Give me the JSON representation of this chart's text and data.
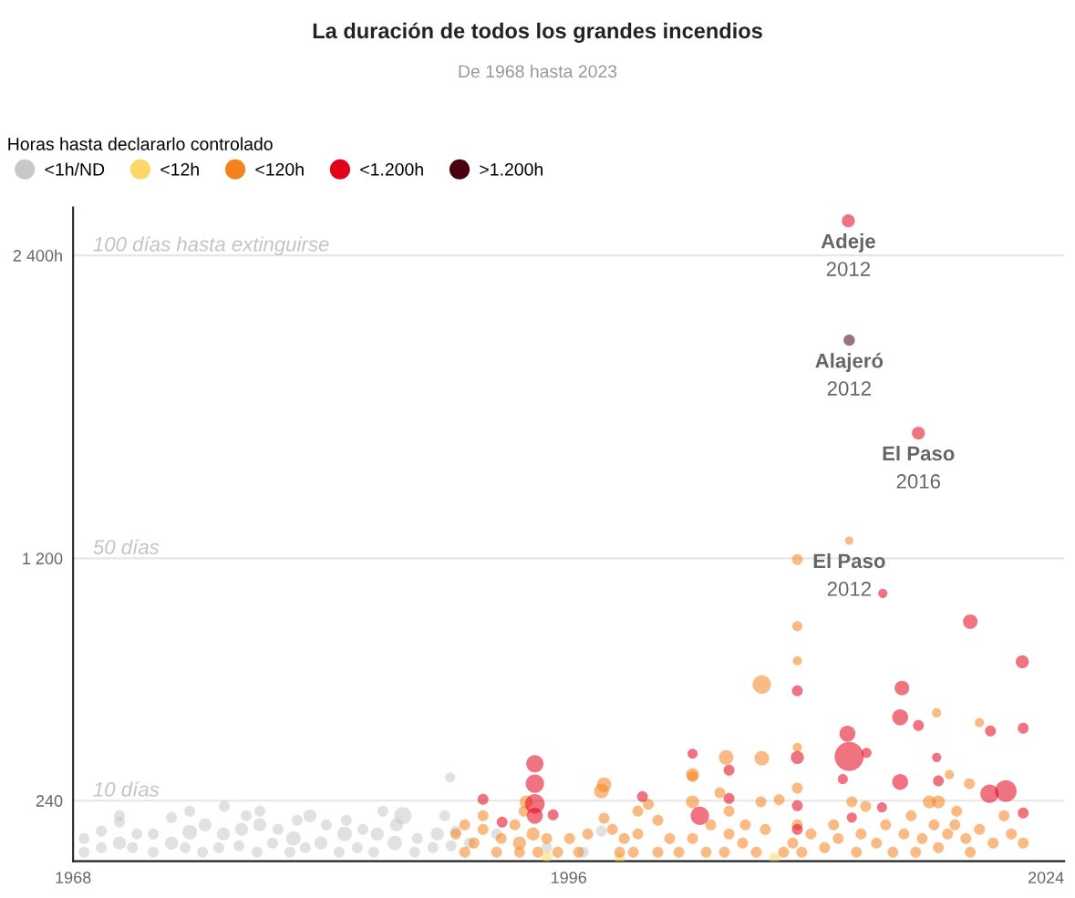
{
  "chart_data": {
    "type": "bubble",
    "title": "La duración de todos los grandes incendios",
    "subtitle": "De 1968 hasta 2023",
    "legend_title": "Horas hasta declararlo controlado",
    "legend": "top left",
    "xlim": [
      1968,
      2024
    ],
    "xticks": [
      1968,
      1996,
      2024
    ],
    "ylim": [
      0,
      2590
    ],
    "yticks": [
      {
        "value": 240,
        "label": "240"
      },
      {
        "value": 1200,
        "label": "1 200"
      },
      {
        "value": 2400,
        "label": "2 400h"
      }
    ],
    "grid": false,
    "ref_lines": [
      {
        "axis": "y",
        "value": 240,
        "label": "10 días",
        "color": "#e6e6e6"
      },
      {
        "axis": "y",
        "value": 1200,
        "label": "50 días",
        "color": "#e6e6e6"
      },
      {
        "axis": "y",
        "value": 2400,
        "label": "100 días hasta extinguirse",
        "color": "#e6e6e6"
      }
    ],
    "annotations": [
      {
        "text": "Adeje\n2012",
        "x": 2011.8,
        "y": 2537
      },
      {
        "text": "Alajeró\n2012",
        "x": 2011.85,
        "y": 2064
      },
      {
        "text": "El Paso\n2016",
        "x": 2015.76,
        "y": 1696
      },
      {
        "text": "El Paso\n2012",
        "x": 2011.85,
        "y": 1270
      }
    ],
    "series": [
      {
        "name": "<1h/ND",
        "color": "#c8c8c8",
        "x": [
          1968.62,
          1968.62,
          1969.6,
          1969.6,
          1970.62,
          1970.62,
          1970.62,
          1971.35,
          1971.6,
          1972.53,
          1972.53,
          1973.56,
          1973.56,
          1974.33,
          1974.59,
          1974.59,
          1975.31,
          1975.46,
          1976.23,
          1976.49,
          1976.54,
          1977.37,
          1977.52,
          1977.78,
          1978.4,
          1978.55,
          1978.55,
          1979.27,
          1979.58,
          1980.25,
          1980.45,
          1980.66,
          1981.12,
          1981.38,
          1982.0,
          1982.31,
          1983.03,
          1983.34,
          1983.44,
          1984.06,
          1984.37,
          1984.98,
          1985.19,
          1985.5,
          1986.17,
          1986.27,
          1986.63,
          1987.3,
          1987.45,
          1988.33,
          1988.58,
          1989.0,
          1989.31,
          1989.36,
          1989.62,
          1990.4,
          1991.93,
          1994.76,
          1996.82,
          1997.85
        ],
        "values": [
          36,
          90,
          54,
          119,
          72,
          155,
          180,
          54,
          108,
          36,
          108,
          72,
          173,
          54,
          115,
          198,
          36,
          144,
          54,
          108,
          217,
          61,
          126,
          180,
          36,
          144,
          198,
          72,
          126,
          36,
          90,
          162,
          54,
          180,
          72,
          144,
          36,
          108,
          162,
          54,
          126,
          36,
          108,
          198,
          72,
          144,
          180,
          36,
          90,
          54,
          108,
          180,
          332,
          61,
          119,
          72,
          108,
          54,
          36,
          119
        ],
        "sizes": [
          0.14,
          0.14,
          0.14,
          0.14,
          0.2,
          0.14,
          0.14,
          0.14,
          0.14,
          0.14,
          0.14,
          0.2,
          0.14,
          0.14,
          0.25,
          0.14,
          0.14,
          0.2,
          0.14,
          0.2,
          0.14,
          0.14,
          0.2,
          0.14,
          0.14,
          0.2,
          0.14,
          0.14,
          0.14,
          0.14,
          0.25,
          0.14,
          0.14,
          0.2,
          0.2,
          0.14,
          0.14,
          0.25,
          0.14,
          0.14,
          0.14,
          0.14,
          0.2,
          0.14,
          0.25,
          0.2,
          0.35,
          0.14,
          0.14,
          0.14,
          0.2,
          0.14,
          0.12,
          0.14,
          0.14,
          0.14,
          0.14,
          0.14,
          0.14,
          0.14
        ]
      },
      {
        "name": "<12h",
        "color": "#fdd866",
        "x": [
          1994.76,
          1998.88,
          2007.63
        ],
        "values": [
          18,
          11,
          11
        ],
        "sizes": [
          0.14,
          0.14,
          0.14
        ]
      },
      {
        "name": "<120h",
        "color": "#f5821f",
        "x": [
          1989.62,
          1990.13,
          1990.13,
          1990.65,
          1991.16,
          1991.16,
          1991.93,
          1992.19,
          1992.96,
          1993.22,
          1993.22,
          1993.48,
          1993.99,
          1993.6,
          1994.25,
          1994.76,
          1995.38,
          1996.05,
          1996.56,
          1997.08,
          1997.85,
          1998.0,
          1998.47,
          1998.88,
          1999.14,
          1999.65,
          1999.91,
          1999.91,
          2000.5,
          2001.04,
          2001.04,
          2001.71,
          2002.23,
          2003.0,
          2003.0,
          2003.0,
          2003.77,
          2004.03,
          2004.54,
          2004.8,
          2005.06,
          2005.06,
          2005.83,
          2005.98,
          2006.6,
          2006.86,
          2007.11,
          2007.89,
          2008.14,
          2008.66,
          2008.92,
          2008.92,
          2008.92,
          2008.92,
          2008.92,
          2008.92,
          2009.17,
          2009.69,
          2010.46,
          2010.97,
          2011.23,
          2012.0,
          2012.26,
          2012.52,
          2012.78,
          2013.39,
          2013.91,
          2014.32,
          2014.94,
          2015.35,
          2015.61,
          2015.97,
          2016.38,
          2016.64,
          2016.79,
          2016.89,
          2017.41,
          2017.51,
          2017.82,
          2018.44,
          2018.69,
          2019.21,
          2019.21,
          2019.98,
          2020.6,
          2021.01,
          2021.68,
          2011.85,
          2006.91,
          2004.9,
          2006.91,
          1998.0,
          2003.0,
          2016.89,
          2017.92,
          2018.64
        ],
        "values": [
          108,
          36,
          144,
          72,
          126,
          180,
          36,
          90,
          144,
          36,
          72,
          198,
          108,
          235,
          36,
          90,
          36,
          90,
          36,
          108,
          278,
          170,
          126,
          36,
          90,
          36,
          108,
          198,
          225,
          36,
          162,
          90,
          36,
          90,
          235,
          336,
          36,
          144,
          271,
          36,
          108,
          198,
          72,
          144,
          36,
          235,
          126,
          243,
          36,
          72,
          144,
          289,
          451,
          794,
          931,
          1195,
          36,
          108,
          54,
          144,
          90,
          235,
          36,
          108,
          217,
          72,
          144,
          36,
          108,
          180,
          36,
          90,
          235,
          144,
          588,
          54,
          108,
          343,
          144,
          90,
          36,
          549,
          126,
          72,
          180,
          108,
          72,
          1270,
          700,
          411,
          408,
          303,
          343,
          235,
          198,
          307
        ],
        "sizes": [
          0.14,
          0.14,
          0.14,
          0.14,
          0.14,
          0.14,
          0.14,
          0.14,
          0.14,
          0.14,
          0.2,
          0.14,
          0.2,
          0.2,
          0.14,
          0.14,
          0.14,
          0.14,
          0.14,
          0.14,
          0.25,
          0.14,
          0.14,
          0.14,
          0.14,
          0.14,
          0.14,
          0.14,
          0.14,
          0.14,
          0.14,
          0.14,
          0.14,
          0.14,
          0.2,
          0.14,
          0.14,
          0.14,
          0.14,
          0.14,
          0.14,
          0.14,
          0.14,
          0.14,
          0.14,
          0.14,
          0.14,
          0.14,
          0.14,
          0.14,
          0.14,
          0.14,
          0.1,
          0.1,
          0.12,
          0.14,
          0.14,
          0.14,
          0.14,
          0.14,
          0.14,
          0.14,
          0.14,
          0.14,
          0.14,
          0.14,
          0.14,
          0.14,
          0.14,
          0.14,
          0.14,
          0.14,
          0.2,
          0.14,
          0.1,
          0.14,
          0.14,
          0.1,
          0.14,
          0.14,
          0.14,
          0.1,
          0.14,
          0.14,
          0.14,
          0.14,
          0.14,
          0.08,
          0.4,
          0.25,
          0.25,
          0.25,
          0.2,
          0.2,
          0.14,
          0.14
        ]
      },
      {
        "name": "<1.200h",
        "color": "#e3001b",
        "x": [
          1991.16,
          1992.24,
          1994.09,
          1994.09,
          1994.09,
          1994.09,
          1995.12,
          2000.17,
          2003.0,
          2003.41,
          2005.06,
          2005.06,
          2008.92,
          2008.92,
          2008.92,
          2008.92,
          2011.75,
          2011.85,
          2012.83,
          2011.49,
          2012.0,
          2013.7,
          2014.83,
          2014.73,
          2015.76,
          2014.73,
          2016.79,
          2016.89,
          2018.69,
          2019.83,
          2019.78,
          2020.7,
          2021.63,
          2021.68,
          2021.68,
          2013.75,
          2011.8,
          2015.76
        ],
        "values": [
          245,
          155,
          386,
          307,
          227,
          180,
          184,
          256,
          426,
          180,
          361,
          249,
          675,
          411,
          220,
          126,
          505,
          415,
          429,
          325,
          173,
          213,
          686,
          570,
          538,
          314,
          411,
          318,
          949,
          516,
          267,
          278,
          790,
          527,
          191,
          1061,
          2537,
          1696
        ],
        "sizes": [
          0.14,
          0.14,
          0.35,
          0.4,
          0.45,
          0.3,
          0.14,
          0.14,
          0.12,
          0.4,
          0.14,
          0.14,
          0.14,
          0.2,
          0.14,
          0.14,
          0.3,
          1.0,
          0.12,
          0.12,
          0.12,
          0.12,
          0.25,
          0.3,
          0.14,
          0.3,
          0.1,
          0.14,
          0.25,
          0.14,
          0.4,
          0.55,
          0.2,
          0.14,
          0.14,
          0.1,
          0.2,
          0.2
        ]
      },
      {
        "name": ">1.200h",
        "color": "#4a0010",
        "x": [
          2011.85
        ],
        "values": [
          2064
        ],
        "sizes": [
          0.15
        ]
      }
    ]
  }
}
